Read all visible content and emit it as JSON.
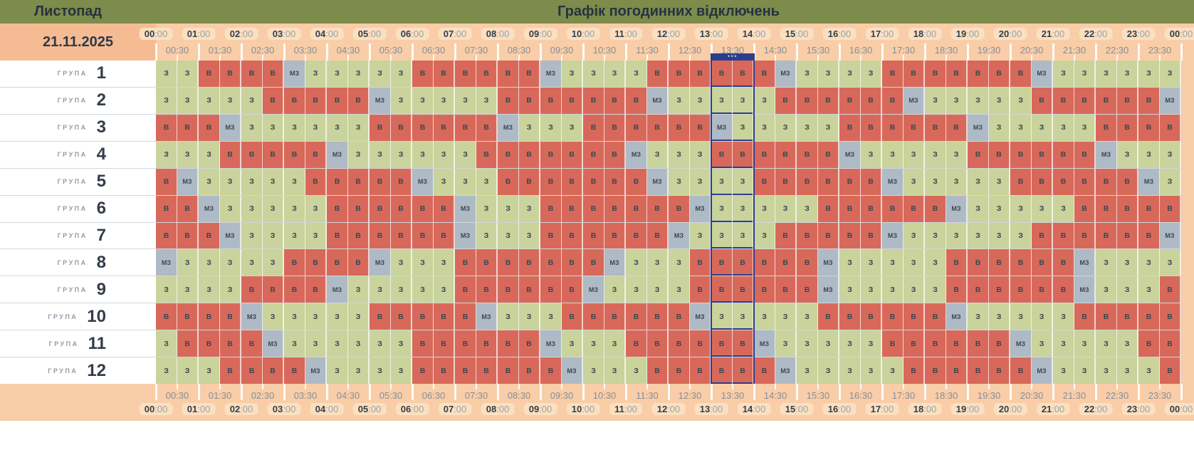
{
  "header": {
    "month": "Листопад",
    "title": "Графік погодинних відключень",
    "date": "21.11.2025",
    "current_marker": "•••",
    "hours": [
      "00:00",
      "01:00",
      "02:00",
      "03:00",
      "04:00",
      "05:00",
      "06:00",
      "07:00",
      "08:00",
      "09:00",
      "10:00",
      "11:00",
      "12:00",
      "13:00",
      "14:00",
      "15:00",
      "16:00",
      "17:00",
      "18:00",
      "19:00",
      "20:00",
      "21:00",
      "22:00",
      "23:00",
      "00:00"
    ],
    "half_hours": [
      "00:30",
      "01:30",
      "02:30",
      "03:30",
      "04:30",
      "05:30",
      "06:30",
      "07:30",
      "08:30",
      "09:30",
      "10:30",
      "11:30",
      "12:30",
      "13:30",
      "14:30",
      "15:30",
      "16:30",
      "17:30",
      "18:30",
      "19:30",
      "20:30",
      "21:30",
      "22:30",
      "23:30"
    ]
  },
  "grid": {
    "group_label": "ГРУПА",
    "highlight": {
      "columns": [
        27,
        28
      ],
      "start_time": "13:00",
      "end_time": "14:00"
    },
    "groups": [
      {
        "number": "1",
        "slots": [
          "З",
          "З",
          "В",
          "В",
          "В",
          "В",
          "МЗ",
          "З",
          "З",
          "З",
          "З",
          "З",
          "В",
          "В",
          "В",
          "В",
          "В",
          "В",
          "МЗ",
          "З",
          "З",
          "З",
          "З",
          "В",
          "В",
          "В",
          "В",
          "В",
          "В",
          "МЗ",
          "З",
          "З",
          "З",
          "З",
          "В",
          "В",
          "В",
          "В",
          "В",
          "В",
          "В",
          "МЗ",
          "З",
          "З",
          "З",
          "З",
          "З",
          "З"
        ]
      },
      {
        "number": "2",
        "slots": [
          "З",
          "З",
          "З",
          "З",
          "З",
          "В",
          "В",
          "В",
          "В",
          "В",
          "МЗ",
          "З",
          "З",
          "З",
          "З",
          "З",
          "В",
          "В",
          "В",
          "В",
          "В",
          "В",
          "В",
          "МЗ",
          "З",
          "З",
          "З",
          "З",
          "З",
          "В",
          "В",
          "В",
          "В",
          "В",
          "В",
          "МЗ",
          "З",
          "З",
          "З",
          "З",
          "З",
          "В",
          "В",
          "В",
          "В",
          "В",
          "В",
          "МЗ"
        ]
      },
      {
        "number": "3",
        "slots": [
          "В",
          "В",
          "В",
          "МЗ",
          "З",
          "З",
          "З",
          "З",
          "З",
          "З",
          "В",
          "В",
          "В",
          "В",
          "В",
          "В",
          "МЗ",
          "З",
          "З",
          "З",
          "В",
          "В",
          "В",
          "В",
          "В",
          "В",
          "МЗ",
          "З",
          "З",
          "З",
          "З",
          "З",
          "В",
          "В",
          "В",
          "В",
          "В",
          "В",
          "МЗ",
          "З",
          "З",
          "З",
          "З",
          "З",
          "В",
          "В",
          "В",
          "В"
        ]
      },
      {
        "number": "4",
        "slots": [
          "З",
          "З",
          "З",
          "В",
          "В",
          "В",
          "В",
          "В",
          "МЗ",
          "З",
          "З",
          "З",
          "З",
          "З",
          "З",
          "В",
          "В",
          "В",
          "В",
          "В",
          "В",
          "В",
          "МЗ",
          "З",
          "З",
          "З",
          "В",
          "В",
          "В",
          "В",
          "В",
          "В",
          "МЗ",
          "З",
          "З",
          "З",
          "З",
          "З",
          "В",
          "В",
          "В",
          "В",
          "В",
          "В",
          "МЗ",
          "З",
          "З",
          "З"
        ]
      },
      {
        "number": "5",
        "slots": [
          "В",
          "МЗ",
          "З",
          "З",
          "З",
          "З",
          "З",
          "В",
          "В",
          "В",
          "В",
          "В",
          "МЗ",
          "З",
          "З",
          "З",
          "В",
          "В",
          "В",
          "В",
          "В",
          "В",
          "В",
          "МЗ",
          "З",
          "З",
          "З",
          "З",
          "В",
          "В",
          "В",
          "В",
          "В",
          "В",
          "МЗ",
          "З",
          "З",
          "З",
          "З",
          "З",
          "В",
          "В",
          "В",
          "В",
          "В",
          "В",
          "МЗ",
          "З"
        ]
      },
      {
        "number": "6",
        "slots": [
          "В",
          "В",
          "МЗ",
          "З",
          "З",
          "З",
          "З",
          "З",
          "В",
          "В",
          "В",
          "В",
          "В",
          "В",
          "МЗ",
          "З",
          "З",
          "З",
          "В",
          "В",
          "В",
          "В",
          "В",
          "В",
          "В",
          "МЗ",
          "З",
          "З",
          "З",
          "З",
          "З",
          "В",
          "В",
          "В",
          "В",
          "В",
          "В",
          "МЗ",
          "З",
          "З",
          "З",
          "З",
          "З",
          "В",
          "В",
          "В",
          "В",
          "В"
        ]
      },
      {
        "number": "7",
        "slots": [
          "В",
          "В",
          "В",
          "МЗ",
          "З",
          "З",
          "З",
          "З",
          "В",
          "В",
          "В",
          "В",
          "В",
          "В",
          "МЗ",
          "З",
          "З",
          "З",
          "В",
          "В",
          "В",
          "В",
          "В",
          "В",
          "МЗ",
          "З",
          "З",
          "З",
          "З",
          "В",
          "В",
          "В",
          "В",
          "В",
          "МЗ",
          "З",
          "З",
          "З",
          "З",
          "З",
          "З",
          "В",
          "В",
          "В",
          "В",
          "В",
          "В",
          "МЗ"
        ]
      },
      {
        "number": "8",
        "slots": [
          "МЗ",
          "З",
          "З",
          "З",
          "З",
          "З",
          "В",
          "В",
          "В",
          "В",
          "МЗ",
          "З",
          "З",
          "З",
          "В",
          "В",
          "В",
          "В",
          "В",
          "В",
          "В",
          "МЗ",
          "З",
          "З",
          "З",
          "В",
          "В",
          "В",
          "В",
          "В",
          "В",
          "МЗ",
          "З",
          "З",
          "З",
          "З",
          "З",
          "В",
          "В",
          "В",
          "В",
          "В",
          "В",
          "МЗ",
          "З",
          "З",
          "З",
          "З"
        ]
      },
      {
        "number": "9",
        "slots": [
          "З",
          "З",
          "З",
          "З",
          "В",
          "В",
          "В",
          "В",
          "МЗ",
          "З",
          "З",
          "З",
          "З",
          "З",
          "В",
          "В",
          "В",
          "В",
          "В",
          "В",
          "МЗ",
          "З",
          "З",
          "З",
          "З",
          "В",
          "В",
          "В",
          "В",
          "В",
          "В",
          "МЗ",
          "З",
          "З",
          "З",
          "З",
          "З",
          "В",
          "В",
          "В",
          "В",
          "В",
          "В",
          "МЗ",
          "З",
          "З",
          "З",
          "В"
        ]
      },
      {
        "number": "10",
        "slots": [
          "В",
          "В",
          "В",
          "В",
          "МЗ",
          "З",
          "З",
          "З",
          "З",
          "З",
          "В",
          "В",
          "В",
          "В",
          "В",
          "МЗ",
          "З",
          "З",
          "З",
          "В",
          "В",
          "В",
          "В",
          "В",
          "В",
          "МЗ",
          "З",
          "З",
          "З",
          "З",
          "З",
          "В",
          "В",
          "В",
          "В",
          "В",
          "В",
          "МЗ",
          "З",
          "З",
          "З",
          "З",
          "З",
          "В",
          "В",
          "В",
          "В",
          "В"
        ]
      },
      {
        "number": "11",
        "slots": [
          "З",
          "В",
          "В",
          "В",
          "В",
          "МЗ",
          "З",
          "З",
          "З",
          "З",
          "З",
          "З",
          "В",
          "В",
          "В",
          "В",
          "В",
          "В",
          "МЗ",
          "З",
          "З",
          "З",
          "В",
          "В",
          "В",
          "В",
          "В",
          "В",
          "МЗ",
          "З",
          "З",
          "З",
          "З",
          "З",
          "В",
          "В",
          "В",
          "В",
          "В",
          "В",
          "МЗ",
          "З",
          "З",
          "З",
          "З",
          "З",
          "В",
          "В"
        ]
      },
      {
        "number": "12",
        "slots": [
          "З",
          "З",
          "З",
          "В",
          "В",
          "В",
          "В",
          "МЗ",
          "З",
          "З",
          "З",
          "З",
          "В",
          "В",
          "В",
          "В",
          "В",
          "В",
          "В",
          "МЗ",
          "З",
          "З",
          "З",
          "В",
          "В",
          "В",
          "В",
          "В",
          "В",
          "МЗ",
          "З",
          "З",
          "З",
          "З",
          "З",
          "В",
          "В",
          "В",
          "В",
          "В",
          "В",
          "МЗ",
          "З",
          "З",
          "З",
          "З",
          "З",
          "В"
        ]
      }
    ]
  },
  "colors": {
    "top_bar": "#7d8b4b",
    "header_bg": "#f8cda7",
    "date_bg": "#f5bb92",
    "hour_pill_bg": "#fbe0c0",
    "available_green": "#c9d39b",
    "outage_red": "#d8695a",
    "possible_gray": "#aebac6",
    "highlight_navy": "#2b3e8d",
    "text_dark": "#2e3946",
    "text_gray": "#878e98"
  }
}
